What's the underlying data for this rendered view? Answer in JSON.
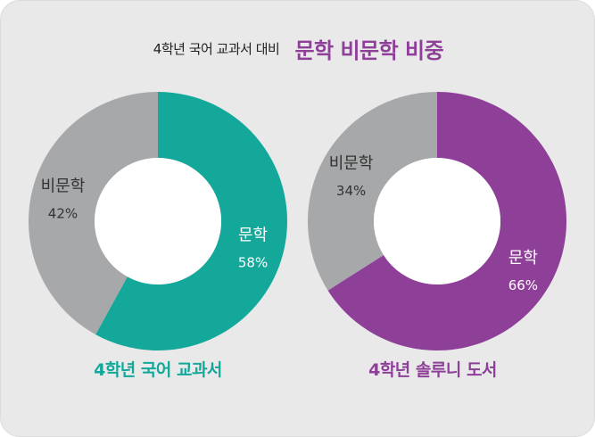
{
  "title": {
    "prefix": "4학년 국어 교과서 대비",
    "main": "문학 비문학 비중"
  },
  "colors": {
    "teal": "#14a89a",
    "purple": "#8e3f98",
    "gray": "#a7a8aa",
    "background": "#e9e9ea"
  },
  "chart_data": [
    {
      "type": "pie",
      "title": "4학년 국어 교과서",
      "slices": [
        {
          "label": "문학",
          "value": 58,
          "value_label": "58%",
          "color": "#14a89a"
        },
        {
          "label": "비문학",
          "value": 42,
          "value_label": "42%",
          "color": "#a7a8aa"
        }
      ]
    },
    {
      "type": "pie",
      "title": "4학년 솔루니 도서",
      "slices": [
        {
          "label": "문학",
          "value": 66,
          "value_label": "66%",
          "color": "#8e3f98"
        },
        {
          "label": "비문학",
          "value": 34,
          "value_label": "34%",
          "color": "#a7a8aa"
        }
      ]
    }
  ]
}
